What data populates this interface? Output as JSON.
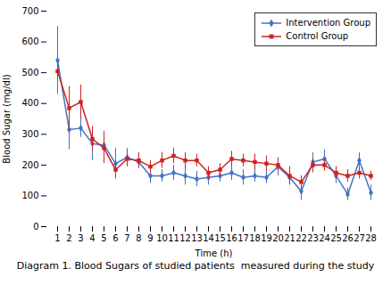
{
  "chart_data": {
    "type": "line",
    "title": "Diagram 1. Blood Sugars of studied patients  measured during the study",
    "xlabel": "Time (h)",
    "ylabel": "Blood Sugar (mg/dl)",
    "categories": [
      "1",
      "2",
      "3",
      "4",
      "5",
      "6",
      "7",
      "8",
      "9",
      "10",
      "11",
      "12",
      "13",
      "14",
      "15",
      "16",
      "17",
      "18",
      "19",
      "20",
      "21",
      "22",
      "23",
      "24",
      "25",
      "26",
      "27",
      "28"
    ],
    "series": [
      {
        "name": "Intervention Group",
        "color": "#4472C4",
        "marker": "diamond",
        "values": [
          540,
          315,
          320,
          270,
          265,
          205,
          225,
          210,
          165,
          165,
          175,
          165,
          155,
          160,
          165,
          175,
          160,
          165,
          160,
          195,
          160,
          115,
          210,
          220,
          165,
          105,
          215,
          110
        ],
        "errors": [
          110,
          65,
          30,
          55,
          45,
          50,
          30,
          20,
          25,
          20,
          25,
          30,
          25,
          25,
          20,
          25,
          25,
          20,
          20,
          30,
          20,
          30,
          30,
          30,
          25,
          20,
          25,
          25
        ]
      },
      {
        "name": "Control Group",
        "color": "#CC2222",
        "marker": "square",
        "values": [
          505,
          385,
          405,
          285,
          255,
          185,
          220,
          215,
          195,
          215,
          230,
          215,
          215,
          175,
          185,
          220,
          215,
          210,
          205,
          200,
          165,
          145,
          200,
          200,
          175,
          165,
          175,
          165
        ],
        "errors": [
          20,
          70,
          55,
          40,
          50,
          20,
          25,
          25,
          20,
          25,
          25,
          25,
          20,
          20,
          20,
          25,
          20,
          25,
          25,
          20,
          30,
          20,
          25,
          20,
          20,
          20,
          20,
          15
        ]
      }
    ],
    "ylim": [
      0,
      700
    ],
    "yticks": [
      0,
      100,
      200,
      300,
      400,
      500,
      600,
      700
    ],
    "grid": false,
    "legend": "upper right"
  }
}
